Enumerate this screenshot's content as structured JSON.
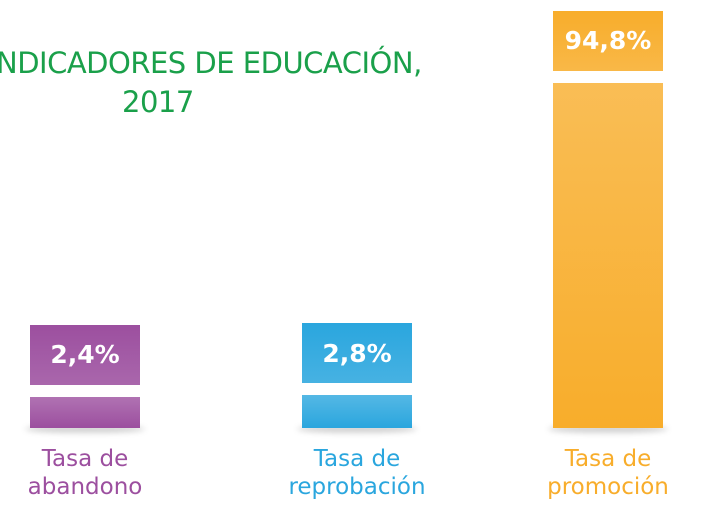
{
  "chart_data": {
    "type": "bar",
    "title": [
      "NDICADORES DE EDUCACIÓN,",
      "2017"
    ],
    "categories": [
      "Tasa de abandono",
      "Tasa de reprobación",
      "Tasa de promoción"
    ],
    "values": [
      2.4,
      2.8,
      94.8
    ],
    "value_labels": [
      "2,4%",
      "2,8%",
      "94,8%"
    ],
    "colors": [
      "#9c4f9f",
      "#2aa6de",
      "#f8ad2b"
    ]
  }
}
